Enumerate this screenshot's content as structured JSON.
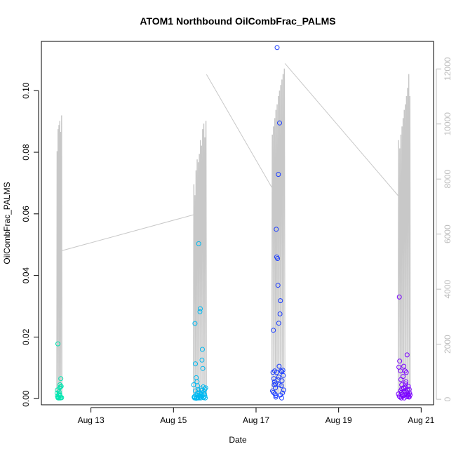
{
  "chart_data": {
    "type": "scatter",
    "title": "ATOM1 Northbound OilCombFrac_PALMS",
    "xlabel": "Date",
    "ylabel": "OilCombFrac_PALMS",
    "x_tick_labels": [
      "Aug 13",
      "Aug 15",
      "Aug 17",
      "Aug 19",
      "Aug 21"
    ],
    "x_tick_days": [
      13,
      15,
      17,
      19,
      21
    ],
    "xlim_days": [
      11.8,
      21.3
    ],
    "y_tick_labels": [
      "0.00",
      "0.02",
      "0.04",
      "0.06",
      "0.08",
      "0.10"
    ],
    "y_tick_values": [
      0,
      0.02,
      0.04,
      0.06,
      0.08,
      0.1
    ],
    "ylim": [
      -0.002,
      0.116
    ],
    "y2_tick_labels": [
      "0",
      "2000",
      "4000",
      "6000",
      "8000",
      "10000",
      "12000"
    ],
    "y2_tick_values": [
      0,
      2000,
      4000,
      6000,
      8000,
      10000,
      12000
    ],
    "y2lim": [
      -200,
      13000
    ],
    "colors": {
      "line": "#c8c8c8",
      "flight_1": "#00e5b0",
      "flight_2": "#00b8f0",
      "flight_3": "#1a3cff",
      "flight_4": "#7a00ff",
      "frame": "#000000",
      "right_axis": "#bdbdbd"
    },
    "altitude_profiles": [
      {
        "name": "flight_1",
        "start": 12.17,
        "end": 12.3,
        "peaks": [
          9000,
          9800,
          9950,
          10100,
          9700,
          10300
        ],
        "base": 200
      },
      {
        "name": "flight_2",
        "start": 15.48,
        "end": 15.8,
        "peaks": [
          7800,
          7400,
          8300,
          8700,
          8600,
          8900,
          9400,
          9200,
          9800,
          10000,
          9500,
          10100
        ],
        "base": 200
      },
      {
        "name": "flight_3",
        "start": 17.38,
        "end": 17.7,
        "peaks": [
          9600,
          9900,
          10200,
          10500,
          10700,
          11000,
          11200,
          11400,
          11600,
          11800,
          12000
        ],
        "base": 200
      },
      {
        "name": "flight_4",
        "start": 20.44,
        "end": 20.74,
        "peaks": [
          9400,
          9100,
          9600,
          9900,
          10200,
          10500,
          10700,
          11000,
          11300,
          11800,
          11000
        ],
        "base": 200
      }
    ],
    "altitude_transits": [
      {
        "x": [
          12.3,
          15.48
        ],
        "y": [
          5400,
          6700
        ]
      },
      {
        "x": [
          15.8,
          17.38
        ],
        "y": [
          11800,
          7700
        ]
      },
      {
        "x": [
          17.7,
          20.44
        ],
        "y": [
          12200,
          7400
        ]
      }
    ],
    "series": [
      {
        "name": "flight_1",
        "x": [
          12.18,
          12.19,
          12.2,
          12.21,
          12.22,
          12.23,
          12.24,
          12.25,
          12.26,
          12.27,
          12.28,
          12.29,
          12.2,
          12.23,
          12.25,
          12.21,
          12.27,
          12.19,
          12.24,
          12.26
        ],
        "y": [
          0.0018,
          0.0008,
          0.0003,
          0.0002,
          0.0012,
          0.0002,
          0.0035,
          0.0045,
          0.0002,
          0.0065,
          0.004,
          0.0003,
          0.0178,
          0.0022,
          0.001,
          0.0005,
          0.0003,
          0.0028,
          0.0015,
          0.0038
        ]
      },
      {
        "name": "flight_2",
        "x": [
          15.49,
          15.5,
          15.51,
          15.52,
          15.53,
          15.54,
          15.55,
          15.56,
          15.57,
          15.58,
          15.59,
          15.6,
          15.61,
          15.62,
          15.63,
          15.64,
          15.65,
          15.66,
          15.67,
          15.68,
          15.69,
          15.7,
          15.71,
          15.72,
          15.73,
          15.74,
          15.75,
          15.76,
          15.77,
          15.78,
          15.51,
          15.53,
          15.56,
          15.58,
          15.6,
          15.62,
          15.64,
          15.66,
          15.68,
          15.7,
          15.72,
          15.74,
          15.76,
          15.55,
          15.59
        ],
        "y": [
          0.0045,
          0.0005,
          0.0002,
          0.0244,
          0.0113,
          0.0012,
          0.0068,
          0.0003,
          0.0055,
          0.0018,
          0.0004,
          0.0028,
          0.0503,
          0.0002,
          0.001,
          0.0282,
          0.0292,
          0.0006,
          0.0032,
          0.0015,
          0.0125,
          0.016,
          0.0098,
          0.0038,
          0.0003,
          0.0022,
          0.0014,
          0.0008,
          0.0002,
          0.0035,
          0.0007,
          0.0025,
          0.0003,
          0.0042,
          0.0011,
          0.0019,
          0.0005,
          0.0002,
          0.0027,
          0.0009,
          0.0004,
          0.0016,
          0.0031,
          0.0001,
          0.0002
        ]
      },
      {
        "name": "flight_3",
        "x": [
          17.4,
          17.41,
          17.42,
          17.43,
          17.44,
          17.45,
          17.46,
          17.47,
          17.48,
          17.49,
          17.5,
          17.51,
          17.52,
          17.53,
          17.54,
          17.55,
          17.56,
          17.57,
          17.58,
          17.59,
          17.6,
          17.61,
          17.62,
          17.63,
          17.64,
          17.65,
          17.66,
          17.67,
          17.42,
          17.45,
          17.48,
          17.5,
          17.53,
          17.56,
          17.59,
          17.62,
          17.47,
          17.55
        ],
        "y": [
          0.0025,
          0.0085,
          0.0222,
          0.0065,
          0.0045,
          0.009,
          0.0015,
          0.0035,
          0.0005,
          0.055,
          0.046,
          0.114,
          0.0455,
          0.0368,
          0.0728,
          0.0245,
          0.0105,
          0.0895,
          0.0275,
          0.0318,
          0.009,
          0.0042,
          0.0002,
          0.0058,
          0.0018,
          0.0092,
          0.0075,
          0.0028,
          0.002,
          0.0055,
          0.001,
          0.0085,
          0.0062,
          0.0045,
          0.0012,
          0.0088,
          0.0048,
          0.007
        ]
      },
      {
        "name": "flight_4",
        "x": [
          20.45,
          20.46,
          20.47,
          20.48,
          20.49,
          20.5,
          20.51,
          20.52,
          20.53,
          20.54,
          20.55,
          20.56,
          20.57,
          20.58,
          20.59,
          20.6,
          20.61,
          20.62,
          20.63,
          20.64,
          20.65,
          20.66,
          20.67,
          20.68,
          20.69,
          20.7,
          20.71,
          20.72,
          20.73,
          20.47,
          20.5,
          20.53,
          20.56,
          20.59,
          20.62,
          20.65,
          20.68,
          20.71,
          20.52,
          20.58
        ],
        "y": [
          0.0015,
          0.0102,
          0.033,
          0.0122,
          0.0005,
          0.009,
          0.0062,
          0.0002,
          0.0032,
          0.0015,
          0.0008,
          0.0072,
          0.0035,
          0.0105,
          0.0025,
          0.0012,
          0.009,
          0.0048,
          0.0055,
          0.0085,
          0.0022,
          0.0142,
          0.0028,
          0.0015,
          0.004,
          0.0008,
          0.003,
          0.0018,
          0.0012,
          0.0008,
          0.0025,
          0.0045,
          0.001,
          0.0002,
          0.0038,
          0.0006,
          0.0012,
          0.0005,
          0.002,
          0.0033
        ]
      }
    ]
  }
}
